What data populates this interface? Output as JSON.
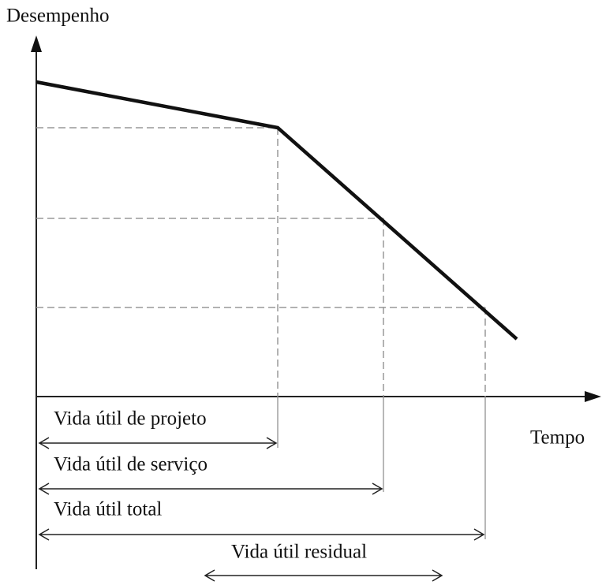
{
  "axes": {
    "y_label": "Desempenho",
    "x_label": "Tempo"
  },
  "intervals": [
    {
      "label": "Vida útil de projeto"
    },
    {
      "label": "Vida útil de serviço"
    },
    {
      "label": "Vida útil total"
    },
    {
      "label": "Vida útil residual"
    }
  ]
}
